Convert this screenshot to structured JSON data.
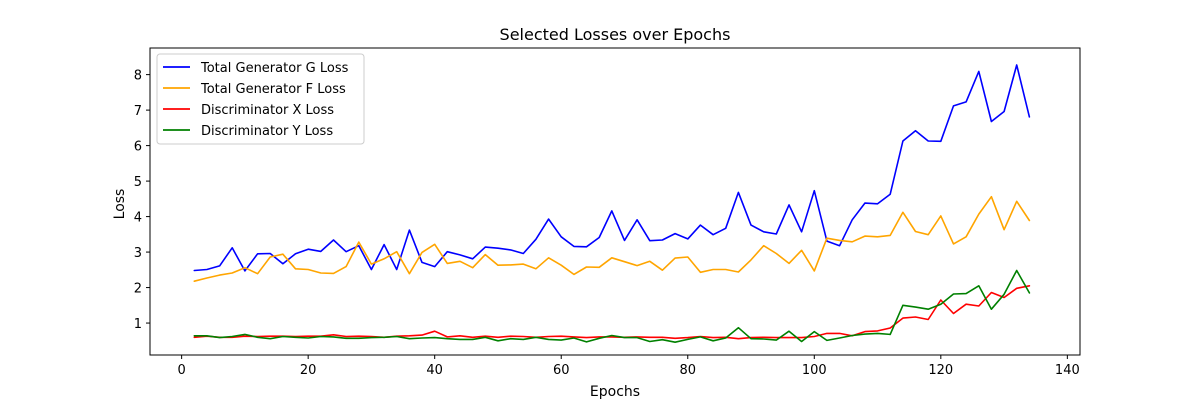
{
  "chart_data": {
    "type": "line",
    "title": "Selected Losses over Epochs",
    "xlabel": "Epochs",
    "ylabel": "Loss",
    "xlim": [
      -5,
      142
    ],
    "ylim": [
      0.1,
      8.75
    ],
    "xticks": [
      0,
      20,
      40,
      60,
      80,
      100,
      120,
      140
    ],
    "yticks": [
      1,
      2,
      3,
      4,
      5,
      6,
      7,
      8
    ],
    "legend": "upper-left",
    "grid": false,
    "x": [
      2,
      4,
      6,
      8,
      10,
      12,
      14,
      16,
      18,
      20,
      22,
      24,
      26,
      28,
      30,
      32,
      34,
      36,
      38,
      40,
      42,
      44,
      46,
      48,
      50,
      52,
      54,
      56,
      58,
      60,
      62,
      64,
      66,
      68,
      70,
      72,
      74,
      76,
      78,
      80,
      82,
      84,
      86,
      88,
      90,
      92,
      94,
      96,
      98,
      100,
      102,
      104,
      106,
      108,
      110,
      112,
      114,
      116,
      118,
      120,
      122,
      124,
      126,
      128,
      130,
      132,
      134
    ],
    "series": [
      {
        "name": "Total Generator G Loss",
        "color": "#0000ff",
        "values": [
          2.48,
          2.51,
          2.61,
          3.12,
          2.47,
          2.95,
          2.96,
          2.67,
          2.95,
          3.08,
          3.02,
          3.34,
          3.01,
          3.18,
          2.51,
          3.21,
          2.51,
          3.62,
          2.71,
          2.59,
          3.01,
          2.92,
          2.81,
          3.14,
          3.11,
          3.06,
          2.96,
          3.36,
          3.93,
          3.43,
          3.16,
          3.15,
          3.41,
          4.16,
          3.33,
          3.91,
          3.32,
          3.34,
          3.52,
          3.37,
          3.76,
          3.49,
          3.67,
          4.68,
          3.76,
          3.57,
          3.51,
          4.33,
          3.57,
          4.73,
          3.31,
          3.18,
          3.91,
          4.38,
          4.36,
          4.63,
          6.13,
          6.42,
          6.13,
          6.12,
          7.12,
          7.23,
          8.09,
          6.68,
          6.96,
          8.27,
          6.81
        ]
      },
      {
        "name": "Total Generator F Loss",
        "color": "#ffa500",
        "values": [
          2.18,
          2.27,
          2.35,
          2.41,
          2.56,
          2.39,
          2.86,
          2.94,
          2.53,
          2.51,
          2.41,
          2.4,
          2.59,
          3.28,
          2.66,
          2.81,
          3.01,
          2.39,
          2.99,
          3.22,
          2.68,
          2.74,
          2.56,
          2.93,
          2.63,
          2.64,
          2.66,
          2.53,
          2.84,
          2.63,
          2.37,
          2.58,
          2.57,
          2.84,
          2.73,
          2.62,
          2.74,
          2.49,
          2.83,
          2.86,
          2.43,
          2.51,
          2.51,
          2.44,
          2.78,
          3.18,
          2.96,
          2.68,
          3.05,
          2.47,
          3.39,
          3.33,
          3.29,
          3.45,
          3.43,
          3.47,
          4.12,
          3.58,
          3.49,
          4.02,
          3.23,
          3.43,
          4.07,
          4.56,
          3.63,
          4.43,
          3.89
        ]
      },
      {
        "name": "Discriminator X Loss",
        "color": "#ff0000",
        "values": [
          0.6,
          0.63,
          0.6,
          0.6,
          0.63,
          0.62,
          0.63,
          0.63,
          0.62,
          0.63,
          0.63,
          0.67,
          0.62,
          0.63,
          0.62,
          0.6,
          0.63,
          0.64,
          0.66,
          0.77,
          0.61,
          0.64,
          0.6,
          0.63,
          0.6,
          0.63,
          0.62,
          0.6,
          0.62,
          0.63,
          0.61,
          0.59,
          0.61,
          0.61,
          0.6,
          0.61,
          0.6,
          0.6,
          0.57,
          0.59,
          0.62,
          0.59,
          0.6,
          0.56,
          0.59,
          0.6,
          0.59,
          0.59,
          0.59,
          0.62,
          0.71,
          0.71,
          0.64,
          0.76,
          0.78,
          0.86,
          1.14,
          1.17,
          1.1,
          1.65,
          1.27,
          1.53,
          1.48,
          1.86,
          1.72,
          1.98,
          2.05
        ]
      },
      {
        "name": "Discriminator Y Loss",
        "color": "#008000",
        "values": [
          0.64,
          0.64,
          0.59,
          0.62,
          0.68,
          0.6,
          0.56,
          0.62,
          0.6,
          0.58,
          0.62,
          0.61,
          0.57,
          0.57,
          0.59,
          0.6,
          0.62,
          0.56,
          0.58,
          0.59,
          0.56,
          0.54,
          0.54,
          0.6,
          0.5,
          0.56,
          0.54,
          0.6,
          0.54,
          0.52,
          0.58,
          0.47,
          0.57,
          0.65,
          0.59,
          0.59,
          0.48,
          0.53,
          0.46,
          0.54,
          0.61,
          0.5,
          0.58,
          0.87,
          0.56,
          0.55,
          0.52,
          0.77,
          0.48,
          0.76,
          0.51,
          0.58,
          0.65,
          0.69,
          0.71,
          0.68,
          1.5,
          1.45,
          1.39,
          1.53,
          1.82,
          1.83,
          2.05,
          1.39,
          1.81,
          2.48,
          1.85
        ]
      }
    ]
  }
}
